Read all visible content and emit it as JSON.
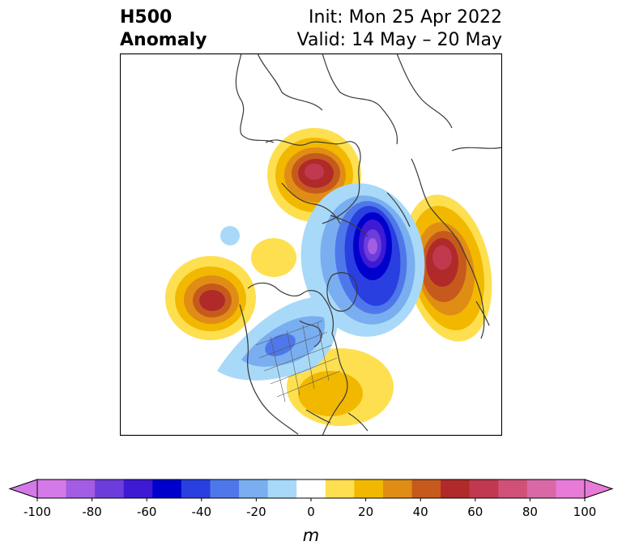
{
  "header": {
    "title_line1": "H500",
    "title_line2": "Anomaly",
    "init": "Init: Mon 25 Apr 2022",
    "valid": "Valid: 14 May – 20 May"
  },
  "colorbar": {
    "units": "m",
    "ticks": [
      "-100",
      "-80",
      "-60",
      "-40",
      "-20",
      "0",
      "20",
      "40",
      "60",
      "80",
      "100"
    ],
    "colors": [
      "#d47ae8",
      "#a25de2",
      "#6c3ddb",
      "#3e1ad4",
      "#0000cd",
      "#2a3fe0",
      "#4e78ea",
      "#79aef0",
      "#a9d9f8",
      "#ffffff",
      "#fedf50",
      "#f2b800",
      "#e08d15",
      "#c65a1d",
      "#b02a2a",
      "#c0394f",
      "#d05078",
      "#d968a8",
      "#e87ad8"
    ],
    "min_color": "#d47ae8",
    "max_color": "#e87ad8"
  }
}
